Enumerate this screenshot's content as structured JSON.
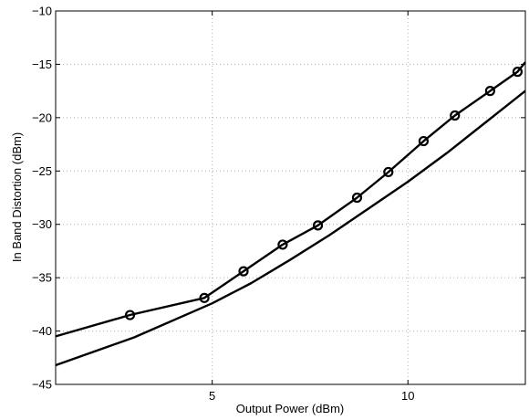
{
  "chart_data": {
    "type": "line",
    "title": "",
    "xlabel": "Output Power (dBm)",
    "ylabel": "In Band Distortion (dBm)",
    "xlim": [
      1,
      13
    ],
    "ylim": [
      -45,
      -10
    ],
    "xticks": [
      5,
      10
    ],
    "yticks": [
      -45,
      -40,
      -35,
      -30,
      -25,
      -20,
      -15,
      -10
    ],
    "xtick_labels": [
      "5",
      "10"
    ],
    "ytick_labels": [
      "−45",
      "−40",
      "−35",
      "−30",
      "−25",
      "−20",
      "−15",
      "−10"
    ],
    "grid": true,
    "legend": null,
    "series": [
      {
        "marker": "circle",
        "x": [
          1,
          2.9,
          4.8,
          5.8,
          6.8,
          7.7,
          8.7,
          9.5,
          10.4,
          11.2,
          12.1,
          12.8,
          13
        ],
        "y": [
          -40.5,
          -38.5,
          -36.9,
          -34.4,
          -31.9,
          -30.1,
          -27.5,
          -25.1,
          -22.2,
          -19.8,
          -17.5,
          -15.7,
          -14.8
        ],
        "marker_x": [
          2.9,
          4.8,
          5.8,
          6.8,
          7.7,
          8.7,
          9.5,
          10.4,
          11.2,
          12.1,
          12.8
        ],
        "marker_y": [
          -38.5,
          -36.9,
          -34.4,
          -31.9,
          -30.1,
          -27.5,
          -25.1,
          -22.2,
          -19.8,
          -17.5,
          -15.7
        ]
      },
      {
        "marker": "none",
        "x": [
          1,
          3,
          5,
          6,
          7,
          8,
          9,
          10,
          11,
          12,
          13
        ],
        "y": [
          -43.2,
          -40.6,
          -37.4,
          -35.5,
          -33.3,
          -31.0,
          -28.5,
          -26.0,
          -23.3,
          -20.4,
          -17.5
        ]
      }
    ]
  }
}
